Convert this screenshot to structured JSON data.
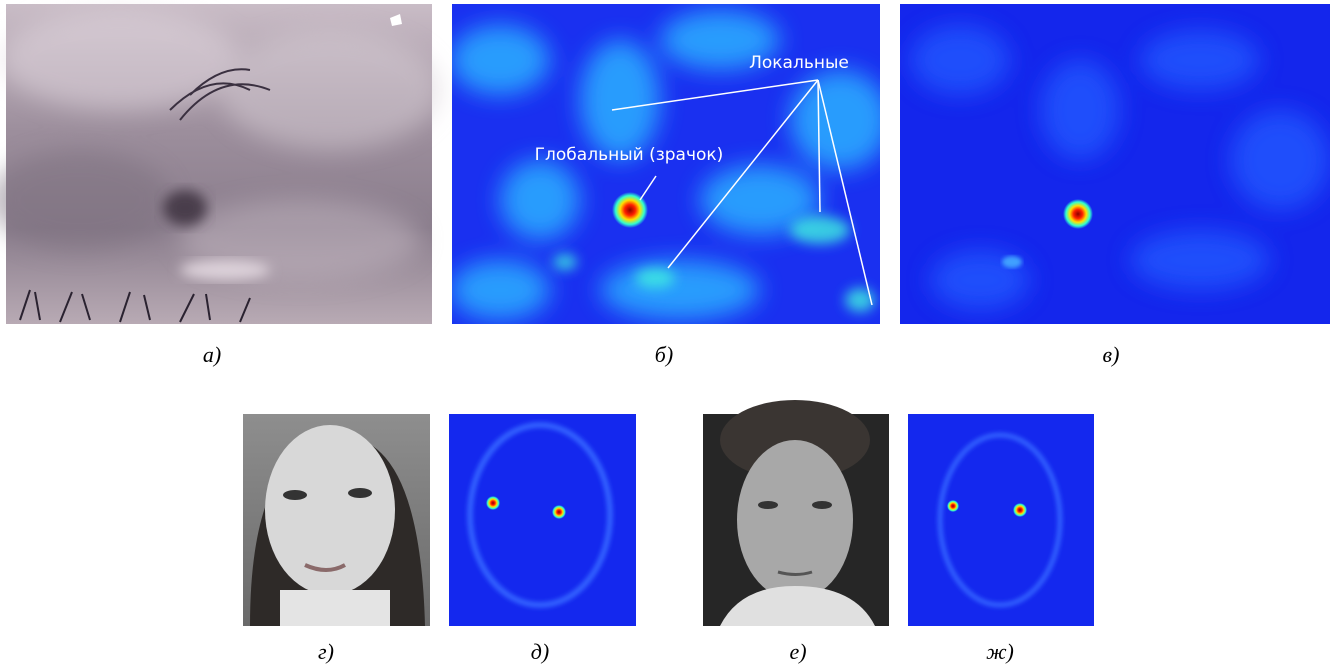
{
  "panels": [
    {
      "label": "а)"
    },
    {
      "label": "б)",
      "annotations": {
        "local": "Локальные",
        "global": "Глобальный (зрачок)"
      }
    },
    {
      "label": "в)"
    },
    {
      "label": "г)"
    },
    {
      "label": "д)"
    },
    {
      "label": "е)"
    },
    {
      "label": "ж)"
    }
  ]
}
